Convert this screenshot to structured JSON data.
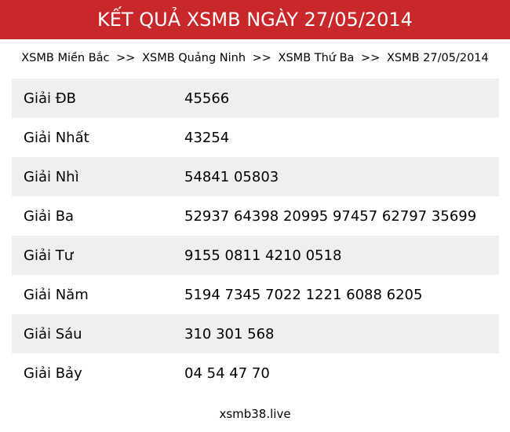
{
  "header": {
    "title": "KẾT QUẢ XSMB NGÀY 27/05/2014",
    "color": "#c9282a"
  },
  "breadcrumb": {
    "items": [
      "XSMB Miền Bắc",
      "XSMB Quảng Ninh",
      "XSMB Thứ Ba",
      "XSMB 27/05/2014"
    ],
    "separator": ">>"
  },
  "results": [
    {
      "label": "Giải ĐB",
      "value": "45566"
    },
    {
      "label": "Giải Nhất",
      "value": "43254"
    },
    {
      "label": "Giải Nhì",
      "value": "54841 05803"
    },
    {
      "label": "Giải Ba",
      "value": "52937 64398 20995 97457 62797 35699"
    },
    {
      "label": "Giải Tư",
      "value": "9155 0811 4210 0518"
    },
    {
      "label": "Giải Năm",
      "value": "5194 7345 7022 1221 6088 6205"
    },
    {
      "label": "Giải Sáu",
      "value": "310 301 568"
    },
    {
      "label": "Giải Bảy",
      "value": "04 54 47 70"
    }
  ],
  "footer": {
    "site": "xsmb38.live"
  }
}
